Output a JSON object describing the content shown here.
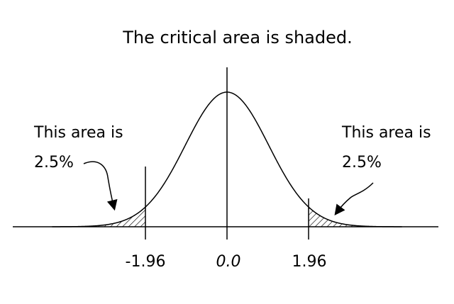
{
  "title": "The critical area is shaded.",
  "annotations": {
    "left": {
      "line1": "This area is",
      "line2": "2.5%"
    },
    "right": {
      "line1": "This area is",
      "line2": "2.5%"
    }
  },
  "tick_labels": {
    "left": "-1.96",
    "center": "0.0",
    "right": "1.96"
  },
  "colors": {
    "stroke": "#000000",
    "background": "#ffffff"
  }
}
